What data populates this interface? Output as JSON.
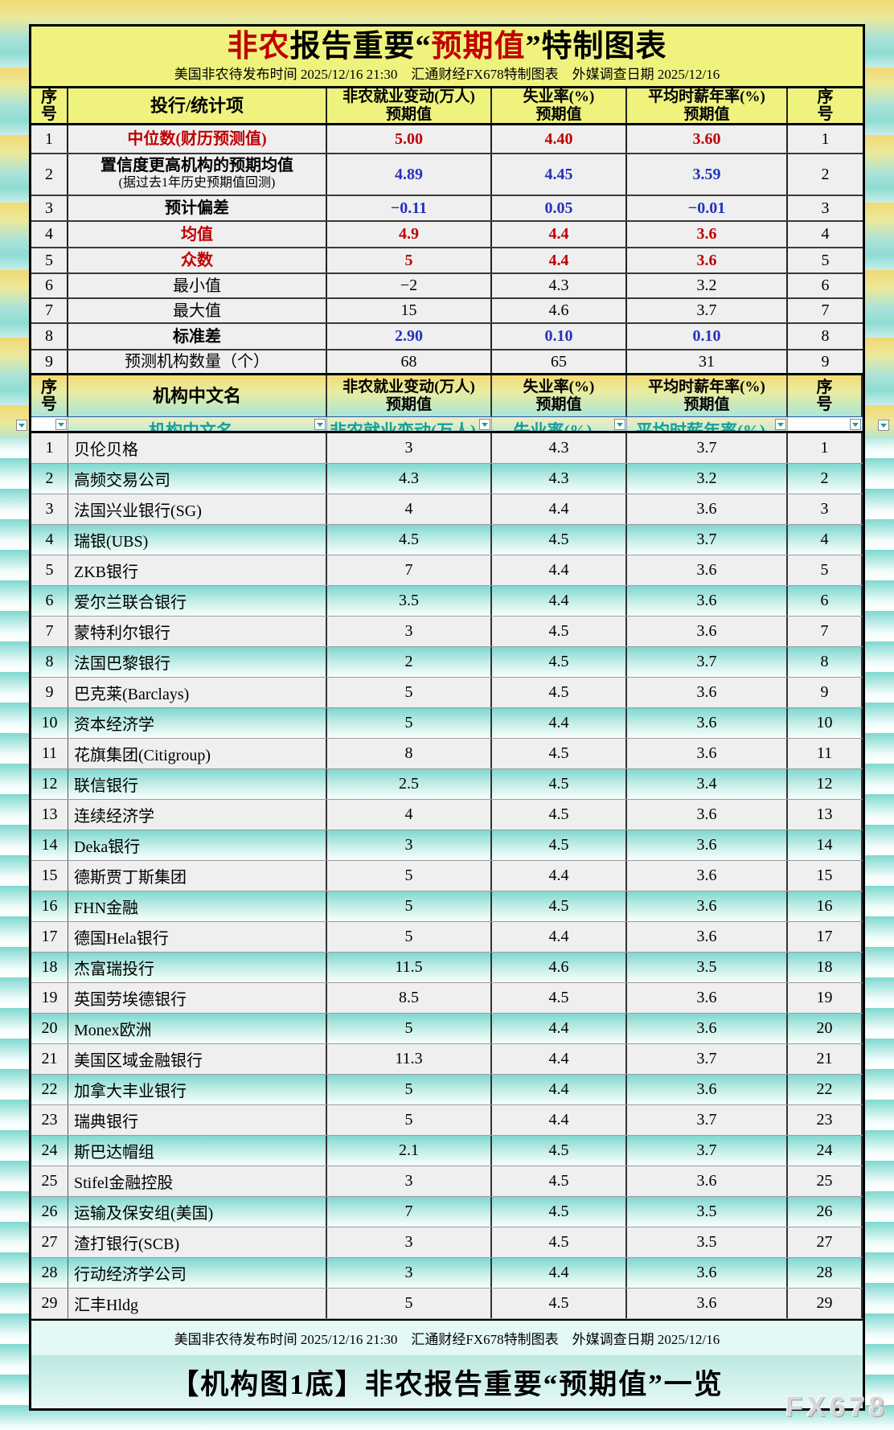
{
  "colors": {
    "accent_red": "#c00000",
    "accent_blue": "#2233bb",
    "header_yellow": "#eff37e",
    "row_teal": "#7fd8d0"
  },
  "title": {
    "segments": [
      {
        "text": "非农",
        "color": "red"
      },
      {
        "text": "报告重要",
        "color": "black"
      },
      {
        "text": "“",
        "color": "black"
      },
      {
        "text": "预期值",
        "color": "red"
      },
      {
        "text": "”",
        "color": "black"
      },
      {
        "text": "特制图表",
        "color": "black"
      }
    ],
    "subtitle": "美国非农待发布时间 2025/12/16 21:30　汇通财经FX678特制图表　外媒调查日期 2025/12/16"
  },
  "table1": {
    "seq_header": "序号",
    "item_header": "投行/统计项",
    "value_headers": [
      {
        "line1": "非农就业变动(万人)",
        "line2": "预期值"
      },
      {
        "line1": "失业率(%)",
        "line2": "预期值"
      },
      {
        "line1": "平均时薪年率(%)",
        "line2": "预期值"
      }
    ],
    "rows": [
      {
        "no": "1",
        "label": "中位数(财历预测值)",
        "sub": "",
        "v1": "5.00",
        "v2": "4.40",
        "v3": "3.60",
        "label_class": "red-b",
        "value_class": "red-b"
      },
      {
        "no": "2",
        "label": "置信度更高机构的预期均值",
        "sub": "(据过去1年历史预期值回测)",
        "v1": "4.89",
        "v2": "4.45",
        "v3": "3.59",
        "label_class": "blk-b",
        "value_class": "blue-b"
      },
      {
        "no": "3",
        "label": "预计偏差",
        "sub": "",
        "v1": "−0.11",
        "v2": "0.05",
        "v3": "−0.01",
        "label_class": "blk-b",
        "value_class": "blue-b"
      },
      {
        "no": "4",
        "label": "均值",
        "sub": "",
        "v1": "4.9",
        "v2": "4.4",
        "v3": "3.6",
        "label_class": "red-b",
        "value_class": "red-b"
      },
      {
        "no": "5",
        "label": "众数",
        "sub": "",
        "v1": "5",
        "v2": "4.4",
        "v3": "3.6",
        "label_class": "red-b",
        "value_class": "red-b"
      },
      {
        "no": "6",
        "label": "最小值",
        "sub": "",
        "v1": "−2",
        "v2": "4.3",
        "v3": "3.2",
        "label_class": "blk",
        "value_class": "blk"
      },
      {
        "no": "7",
        "label": "最大值",
        "sub": "",
        "v1": "15",
        "v2": "4.6",
        "v3": "3.7",
        "label_class": "blk",
        "value_class": "blk"
      },
      {
        "no": "8",
        "label": "标准差",
        "sub": "",
        "v1": "2.90",
        "v2": "0.10",
        "v3": "0.10",
        "label_class": "blk-b",
        "value_class": "blue-b"
      },
      {
        "no": "9",
        "label": "预测机构数量（个）",
        "sub": "",
        "v1": "68",
        "v2": "65",
        "v3": "31",
        "label_class": "blk",
        "value_class": "blk"
      }
    ]
  },
  "table2": {
    "seq_header": "序号",
    "item_header": "机构中文名",
    "value_headers": [
      {
        "line1": "非农就业变动(万人)",
        "line2": "预期值"
      },
      {
        "line1": "失业率(%)",
        "line2": "预期值"
      },
      {
        "line1": "平均时薪年率(%)",
        "line2": "预期值"
      }
    ],
    "filter_labels": [
      "机构中文名",
      "非农就业变动(万人)",
      "失业率(%)",
      "平均时薪年率(%)"
    ],
    "rows": [
      {
        "no": "1",
        "name": "贝伦贝格",
        "v1": "3",
        "v2": "4.3",
        "v3": "3.7"
      },
      {
        "no": "2",
        "name": "高频交易公司",
        "v1": "4.3",
        "v2": "4.3",
        "v3": "3.2"
      },
      {
        "no": "3",
        "name": "法国兴业银行(SG)",
        "v1": "4",
        "v2": "4.4",
        "v3": "3.6"
      },
      {
        "no": "4",
        "name": "瑞银(UBS)",
        "v1": "4.5",
        "v2": "4.5",
        "v3": "3.7"
      },
      {
        "no": "5",
        "name": "ZKB银行",
        "v1": "7",
        "v2": "4.4",
        "v3": "3.6"
      },
      {
        "no": "6",
        "name": "爱尔兰联合银行",
        "v1": "3.5",
        "v2": "4.4",
        "v3": "3.6"
      },
      {
        "no": "7",
        "name": "蒙特利尔银行",
        "v1": "3",
        "v2": "4.5",
        "v3": "3.6"
      },
      {
        "no": "8",
        "name": "法国巴黎银行",
        "v1": "2",
        "v2": "4.5",
        "v3": "3.7"
      },
      {
        "no": "9",
        "name": "巴克莱(Barclays)",
        "v1": "5",
        "v2": "4.5",
        "v3": "3.6"
      },
      {
        "no": "10",
        "name": "资本经济学",
        "v1": "5",
        "v2": "4.4",
        "v3": "3.6"
      },
      {
        "no": "11",
        "name": "花旗集团(Citigroup)",
        "v1": "8",
        "v2": "4.5",
        "v3": "3.6"
      },
      {
        "no": "12",
        "name": "联信银行",
        "v1": "2.5",
        "v2": "4.5",
        "v3": "3.4"
      },
      {
        "no": "13",
        "name": "连续经济学",
        "v1": "4",
        "v2": "4.5",
        "v3": "3.6"
      },
      {
        "no": "14",
        "name": "Deka银行",
        "v1": "3",
        "v2": "4.5",
        "v3": "3.6"
      },
      {
        "no": "15",
        "name": "德斯贾丁斯集团",
        "v1": "5",
        "v2": "4.4",
        "v3": "3.6"
      },
      {
        "no": "16",
        "name": "FHN金融",
        "v1": "5",
        "v2": "4.5",
        "v3": "3.6"
      },
      {
        "no": "17",
        "name": "德国Hela银行",
        "v1": "5",
        "v2": "4.4",
        "v3": "3.6"
      },
      {
        "no": "18",
        "name": "杰富瑞投行",
        "v1": "11.5",
        "v2": "4.6",
        "v3": "3.5"
      },
      {
        "no": "19",
        "name": "英国劳埃德银行",
        "v1": "8.5",
        "v2": "4.5",
        "v3": "3.6"
      },
      {
        "no": "20",
        "name": "Monex欧洲",
        "v1": "5",
        "v2": "4.4",
        "v3": "3.6"
      },
      {
        "no": "21",
        "name": "美国区域金融银行",
        "v1": "11.3",
        "v2": "4.4",
        "v3": "3.7"
      },
      {
        "no": "22",
        "name": "加拿大丰业银行",
        "v1": "5",
        "v2": "4.4",
        "v3": "3.6"
      },
      {
        "no": "23",
        "name": "瑞典银行",
        "v1": "5",
        "v2": "4.4",
        "v3": "3.7"
      },
      {
        "no": "24",
        "name": "斯巴达帽组",
        "v1": "2.1",
        "v2": "4.5",
        "v3": "3.7"
      },
      {
        "no": "25",
        "name": "Stifel金融控股",
        "v1": "3",
        "v2": "4.5",
        "v3": "3.6"
      },
      {
        "no": "26",
        "name": "运输及保安组(美国)",
        "v1": "7",
        "v2": "4.5",
        "v3": "3.5"
      },
      {
        "no": "27",
        "name": "渣打银行(SCB)",
        "v1": "3",
        "v2": "4.5",
        "v3": "3.5"
      },
      {
        "no": "28",
        "name": "行动经济学公司",
        "v1": "3",
        "v2": "4.4",
        "v3": "3.6"
      },
      {
        "no": "29",
        "name": "汇丰Hldg",
        "v1": "5",
        "v2": "4.5",
        "v3": "3.6"
      }
    ]
  },
  "footer": {
    "line1": "美国非农待发布时间 2025/12/16 21:30　汇通财经FX678特制图表　外媒调查日期 2025/12/16",
    "banner": "【机构图1底】非农报告重要“预期值”一览",
    "watermark": "FX678"
  }
}
